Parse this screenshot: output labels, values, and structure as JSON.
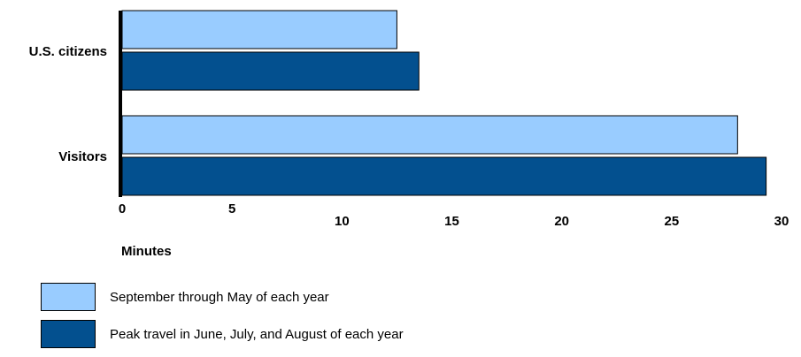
{
  "chart_data": {
    "type": "bar",
    "orientation": "horizontal",
    "categories": [
      "U.S. citizens",
      "Visitors"
    ],
    "series": [
      {
        "name": "September through May of each year",
        "color": "#99ccff",
        "values": [
          12.5,
          28.0
        ]
      },
      {
        "name": "Peak travel in June, July, and August of each year",
        "color": "#03508f",
        "values": [
          13.5,
          29.3
        ]
      }
    ],
    "xlabel": "Minutes",
    "ylabel": "",
    "xlim": [
      0,
      30
    ],
    "xticks": [
      0,
      5,
      10,
      15,
      20,
      25,
      30
    ],
    "grid": false,
    "legend_position": "bottom-left"
  }
}
